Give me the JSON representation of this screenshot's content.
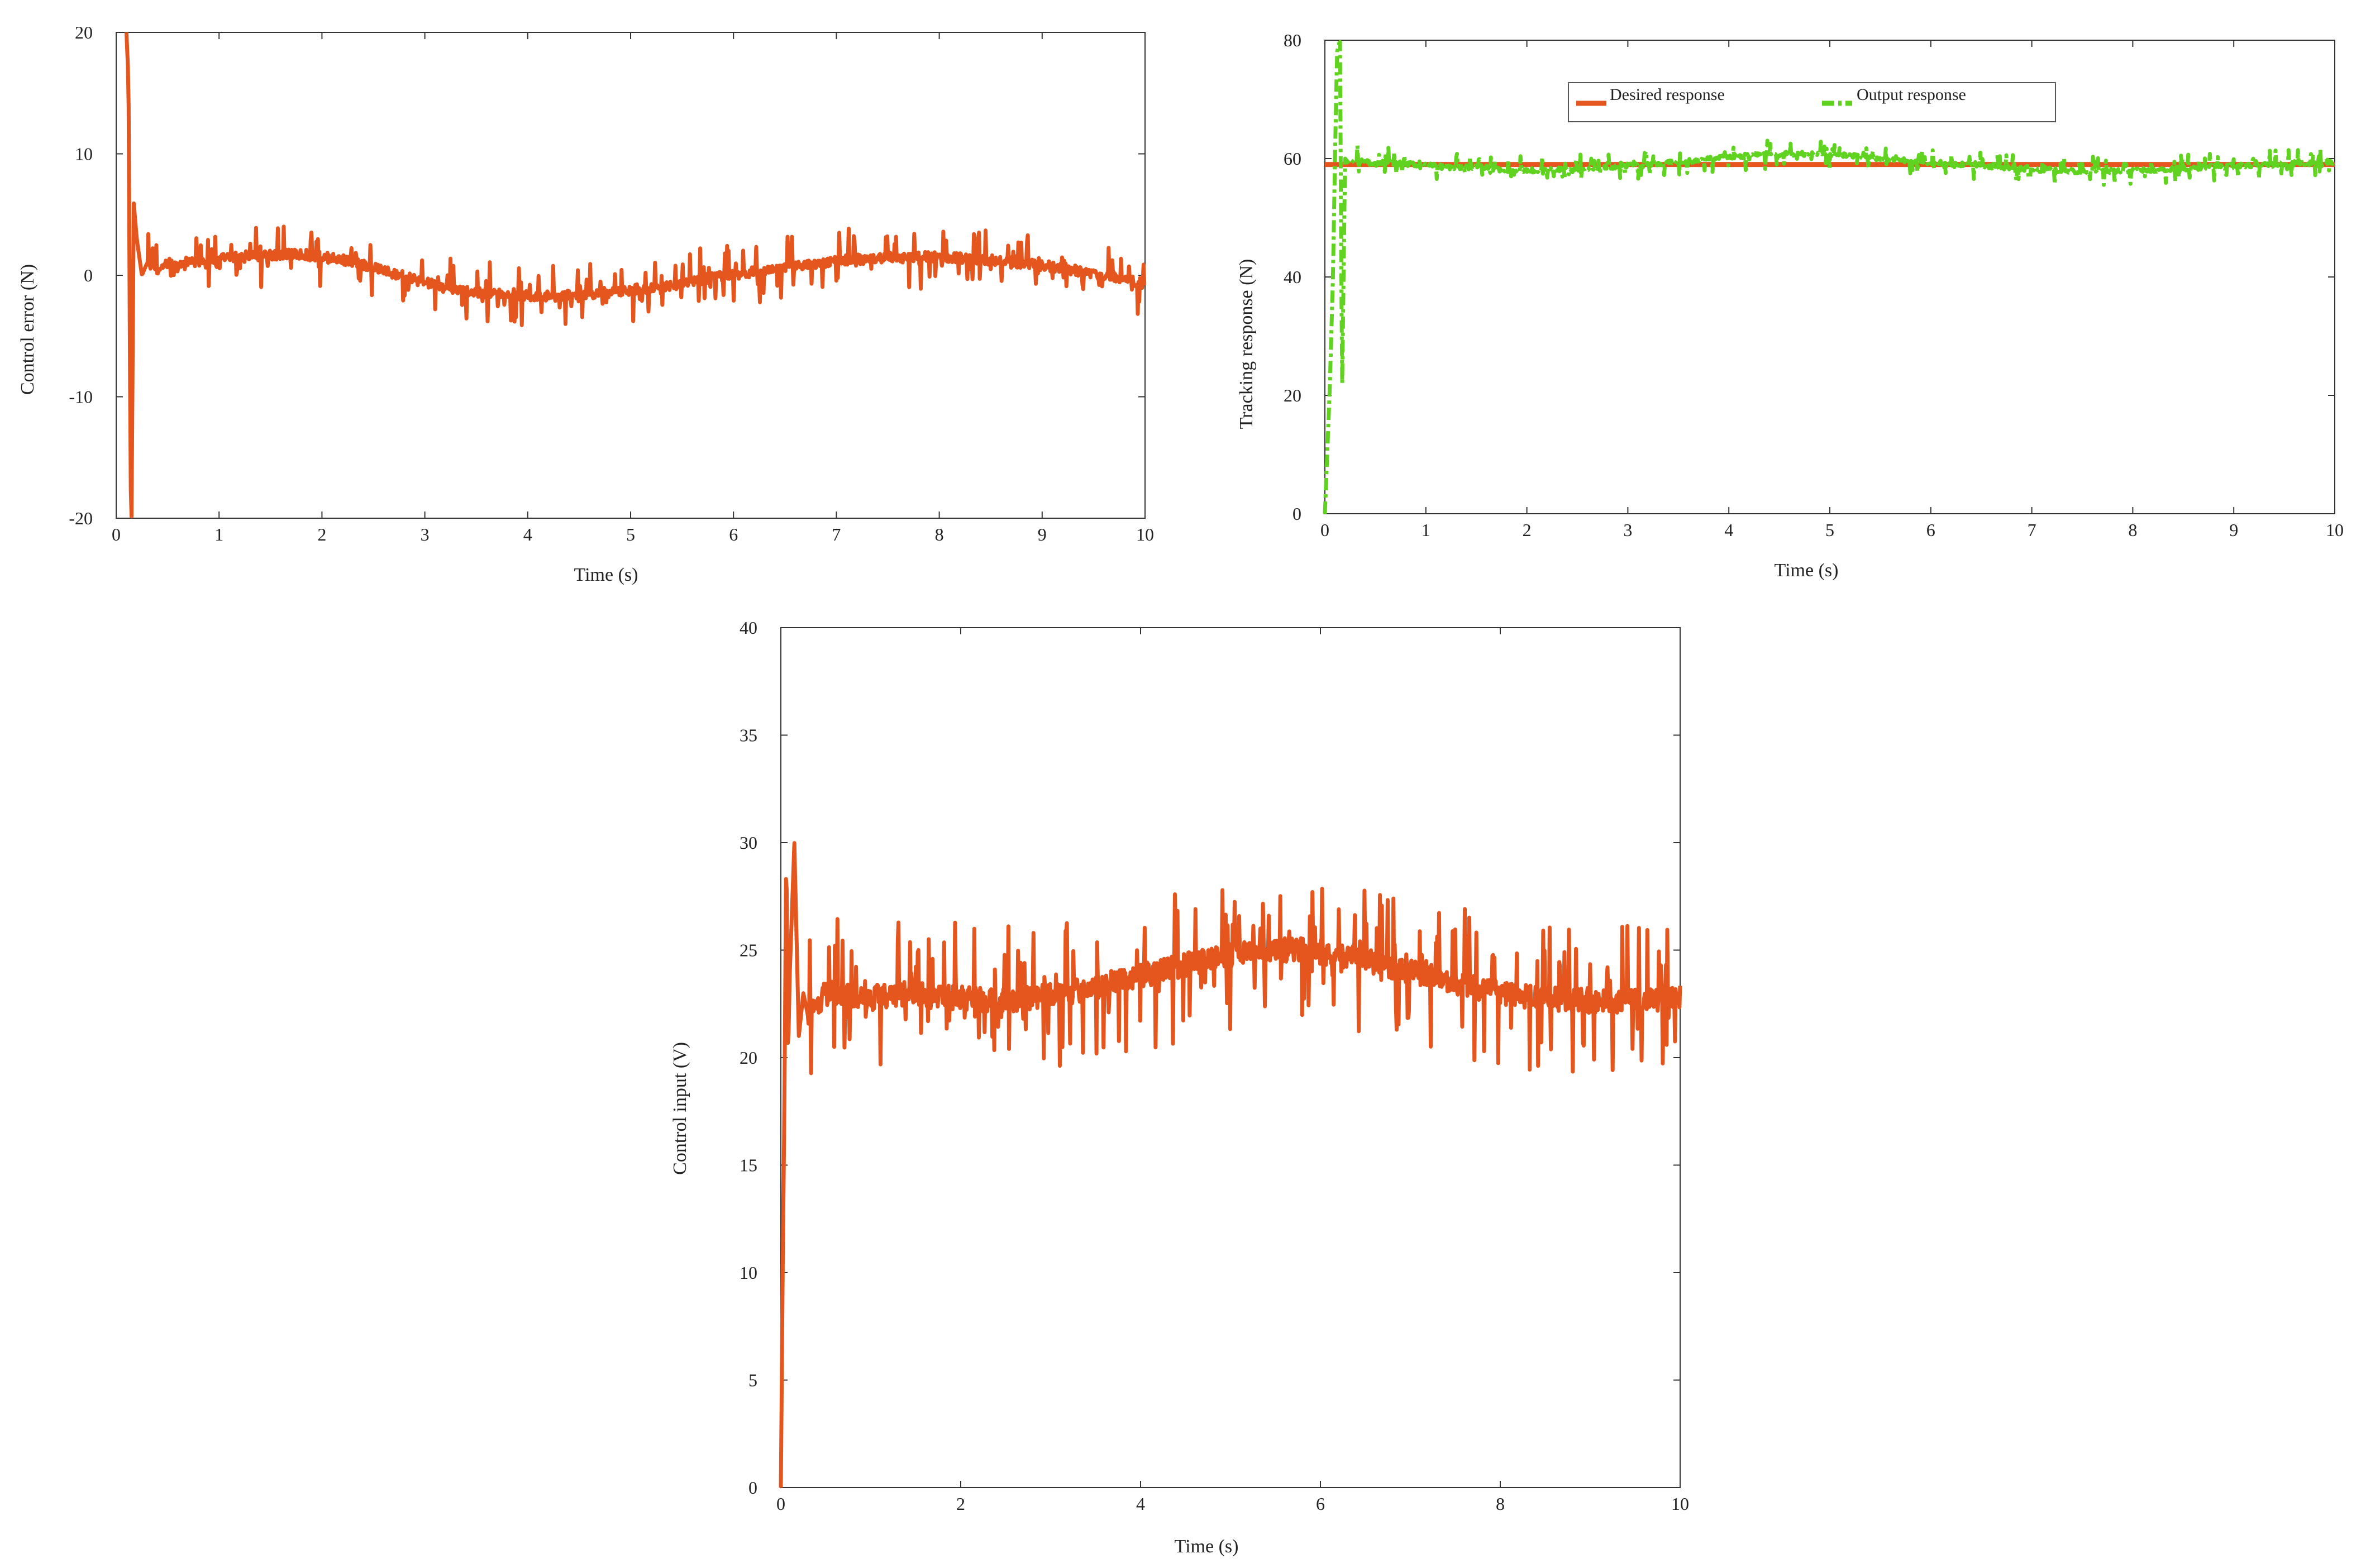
{
  "colors": {
    "orange": "#e4561e",
    "green": "#5fd31f",
    "axis": "#333333"
  },
  "chart_data": [
    {
      "id": "error",
      "type": "line",
      "title": "",
      "xlabel": "Time (s)",
      "ylabel": "Control error (N)",
      "xlim": [
        0,
        10
      ],
      "ylim": [
        -20,
        20
      ],
      "xticks": [
        0,
        1,
        2,
        3,
        4,
        5,
        6,
        7,
        8,
        9,
        10
      ],
      "yticks": [
        -20,
        -10,
        0,
        10,
        20
      ],
      "xtick_labels": [
        "0",
        "1",
        "2",
        "3",
        "4",
        "5",
        "6",
        "7",
        "8",
        "9",
        "10"
      ],
      "ytick_labels": [
        "-20",
        "-10",
        "0",
        "10",
        "20"
      ],
      "grid": false,
      "series": [
        {
          "name": "",
          "color": "#e4561e",
          "style": "solid",
          "x": [
            0.1,
            0.12,
            0.14,
            0.15,
            0.17,
            0.2,
            0.25,
            0.3,
            0.4,
            0.5,
            0.6,
            0.7,
            0.8,
            0.9,
            1.0,
            1.1,
            1.2,
            1.3,
            1.4,
            1.5,
            1.6,
            1.7,
            1.8,
            1.9,
            2.0,
            2.2,
            2.4,
            2.6,
            2.8,
            3.0,
            3.2,
            3.4,
            3.6,
            3.8,
            4.0,
            4.2,
            4.4,
            4.6,
            4.8,
            5.0,
            5.2,
            5.4,
            5.6,
            5.8,
            6.0,
            6.2,
            6.4,
            6.6,
            6.8,
            7.0,
            7.2,
            7.4,
            7.6,
            7.8,
            8.0,
            8.2,
            8.4,
            8.6,
            8.8,
            9.0,
            9.2,
            9.4,
            9.6,
            9.8,
            10.0
          ],
          "y": [
            20,
            16,
            -17,
            -20,
            6,
            3,
            0,
            1,
            0.5,
            1,
            0.7,
            1,
            1.2,
            1,
            1.3,
            1.4,
            1.5,
            1.6,
            1.6,
            1.7,
            1.7,
            1.7,
            1.7,
            1.6,
            1.5,
            1.3,
            0.9,
            0.4,
            -0.1,
            -0.6,
            -1,
            -1.3,
            -1.5,
            -1.6,
            -1.7,
            -1.7,
            -1.6,
            -1.5,
            -1.4,
            -1.2,
            -1,
            -0.8,
            -0.5,
            -0.2,
            0,
            0.3,
            0.6,
            0.8,
            1,
            1.2,
            1.3,
            1.4,
            1.5,
            1.5,
            1.5,
            1.4,
            1.3,
            1.2,
            1,
            0.8,
            0.6,
            0.3,
            0,
            -0.3,
            -0.7
          ]
        }
      ]
    },
    {
      "id": "tracking",
      "type": "line",
      "title": "",
      "xlabel": "Time (s)",
      "ylabel": "Tracking response (N)",
      "xlim": [
        0,
        10
      ],
      "ylim": [
        0,
        80
      ],
      "xticks": [
        0,
        1,
        2,
        3,
        4,
        5,
        6,
        7,
        8,
        9,
        10
      ],
      "yticks": [
        0,
        20,
        40,
        60,
        80
      ],
      "xtick_labels": [
        "0",
        "1",
        "2",
        "3",
        "4",
        "5",
        "6",
        "7",
        "8",
        "9",
        "10"
      ],
      "ytick_labels": [
        "0",
        "20",
        "40",
        "60",
        "80"
      ],
      "grid": false,
      "legend_position": "top",
      "series": [
        {
          "name": "Desired response",
          "color": "#e4561e",
          "style": "solid",
          "x": [
            0,
            10
          ],
          "y": [
            59,
            59
          ]
        },
        {
          "name": "Output response",
          "color": "#5fd31f",
          "style": "dashdot",
          "x": [
            0.0,
            0.05,
            0.08,
            0.1,
            0.12,
            0.15,
            0.17,
            0.2,
            0.25,
            0.3,
            0.4,
            0.5,
            0.6,
            0.8,
            1.0,
            1.2,
            1.4,
            1.6,
            1.8,
            2.0,
            2.2,
            2.4,
            2.6,
            2.8,
            3.0,
            3.2,
            3.4,
            3.6,
            3.8,
            4.0,
            4.2,
            4.4,
            4.6,
            4.8,
            5.0,
            5.2,
            5.4,
            5.6,
            5.8,
            6.0,
            6.2,
            6.4,
            6.6,
            6.8,
            7.0,
            7.2,
            7.4,
            7.6,
            7.8,
            8.0,
            8.2,
            8.4,
            8.6,
            8.8,
            9.0,
            9.2,
            9.4,
            9.6,
            9.8,
            10.0
          ],
          "y": [
            0,
            22,
            40,
            60,
            78,
            80,
            20,
            60,
            59,
            60,
            59.5,
            59,
            59.5,
            59,
            59,
            58.5,
            58.5,
            58.5,
            58,
            58,
            58,
            58.2,
            58.4,
            58.6,
            58.8,
            59,
            59.3,
            59.6,
            60,
            60.3,
            60.5,
            60.7,
            60.8,
            60.8,
            60.7,
            60.5,
            60.2,
            59.9,
            59.6,
            59.4,
            59.1,
            58.9,
            58.6,
            58.4,
            58.2,
            58,
            57.9,
            57.9,
            57.9,
            58,
            58.1,
            58.3,
            58.4,
            58.6,
            58.7,
            58.9,
            59,
            59.2,
            59.3,
            59.5
          ]
        }
      ]
    },
    {
      "id": "input",
      "type": "line",
      "title": "",
      "xlabel": "Time (s)",
      "ylabel": "Control input (V)",
      "xlim": [
        0,
        10
      ],
      "ylim": [
        0,
        40
      ],
      "xticks": [
        0,
        2,
        4,
        6,
        8,
        10
      ],
      "yticks": [
        0,
        5,
        10,
        15,
        20,
        25,
        30,
        35,
        40
      ],
      "xtick_labels": [
        "0",
        "2",
        "4",
        "6",
        "8",
        "10"
      ],
      "ytick_labels": [
        "0",
        "5",
        "10",
        "15",
        "20",
        "25",
        "30",
        "35",
        "40"
      ],
      "grid": false,
      "series": [
        {
          "name": "",
          "color": "#e4561e",
          "style": "solid",
          "x": [
            0.0,
            0.02,
            0.04,
            0.06,
            0.08,
            0.1,
            0.15,
            0.2,
            0.25,
            0.3,
            0.4,
            0.5,
            0.6,
            0.8,
            1.0,
            1.2,
            1.4,
            1.6,
            1.8,
            2.0,
            2.2,
            2.4,
            2.6,
            2.8,
            3.0,
            3.2,
            3.4,
            3.6,
            3.8,
            4.0,
            4.2,
            4.4,
            4.6,
            4.8,
            5.0,
            5.2,
            5.4,
            5.6,
            5.8,
            6.0,
            6.2,
            6.4,
            6.6,
            6.8,
            7.0,
            7.2,
            7.4,
            7.6,
            7.8,
            8.0,
            8.2,
            8.4,
            8.6,
            8.8,
            9.0,
            9.2,
            9.4,
            9.6,
            9.8,
            10.0
          ],
          "y": [
            0,
            10,
            18,
            30,
            20,
            24,
            30,
            21,
            23,
            22,
            22.5,
            23,
            23,
            22.8,
            22.8,
            22.9,
            23,
            22.9,
            22.8,
            22.8,
            22.7,
            22.7,
            22.7,
            22.8,
            22.9,
            23,
            23.2,
            23.4,
            23.6,
            23.8,
            24,
            24.2,
            24.4,
            24.6,
            24.8,
            25,
            25,
            25,
            25,
            24.9,
            24.8,
            24.6,
            24.4,
            24.2,
            24,
            23.8,
            23.6,
            23.4,
            23.2,
            23,
            22.9,
            22.8,
            22.7,
            22.7,
            22.6,
            22.6,
            22.7,
            22.7,
            22.8,
            22.9
          ]
        }
      ]
    }
  ]
}
